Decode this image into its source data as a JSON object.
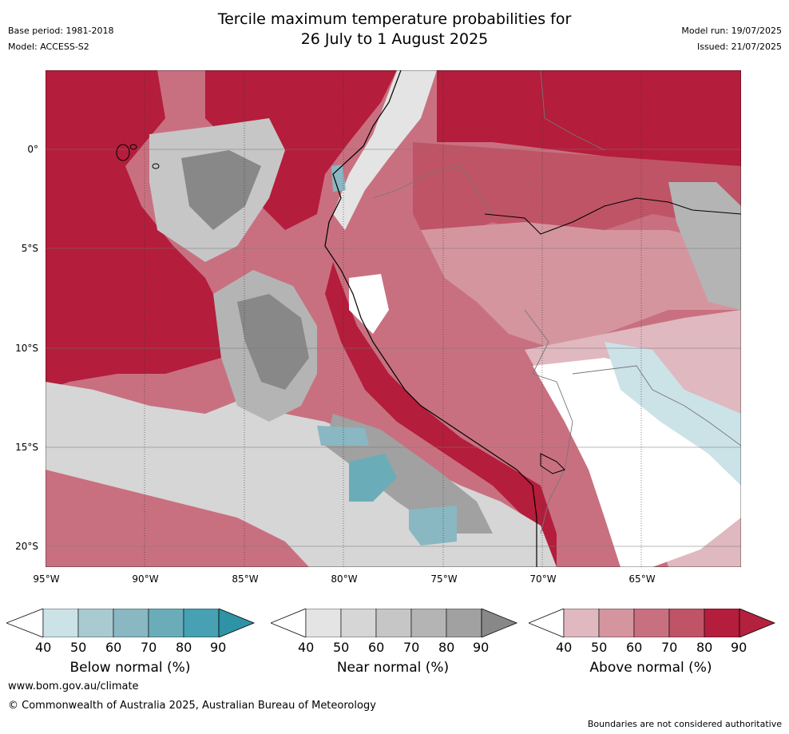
{
  "header": {
    "title_line1": "Tercile maximum temperature probabilities for",
    "title_line2": "26 July to 1 August 2025",
    "base_period": "Base period: 1981-2018",
    "model": "Model: ACCESS-S2",
    "model_run": "Model run: 19/07/2025",
    "issued": "Issued: 21/07/2025"
  },
  "map": {
    "lat_labels": [
      "0°",
      "5°S",
      "10°S",
      "15°S",
      "20°S"
    ],
    "lon_labels": [
      "95°W",
      "90°W",
      "85°W",
      "80°W",
      "75°W",
      "70°W",
      "65°W"
    ],
    "colors": {
      "above": [
        "#e0b8bf",
        "#d4959f",
        "#c97080",
        "#bf5467",
        "#b41d3c",
        "#b4213e"
      ],
      "near": [
        "#e4e4e4",
        "#d6d6d6",
        "#c6c6c6",
        "#b4b4b4",
        "#a1a1a1",
        "#888888"
      ],
      "below": [
        "#cbe2e7",
        "#a9cad1",
        "#89b7c2",
        "#6aadb9",
        "#47a1b2",
        "#2f93a6"
      ]
    }
  },
  "legends": [
    {
      "id": "below",
      "title": "Below normal (%)",
      "ticks": [
        "40",
        "50",
        "60",
        "70",
        "80",
        "90"
      ]
    },
    {
      "id": "near",
      "title": "Near normal (%)",
      "ticks": [
        "40",
        "50",
        "60",
        "70",
        "80",
        "90"
      ]
    },
    {
      "id": "above",
      "title": "Above normal (%)",
      "ticks": [
        "40",
        "50",
        "60",
        "70",
        "80",
        "90"
      ]
    }
  ],
  "footer": {
    "url": "www.bom.gov.au/climate",
    "copyright": "© Commonwealth of Australia 2025, Australian Bureau of Meteorology",
    "disclaimer": "Boundaries are not considered authoritative"
  }
}
